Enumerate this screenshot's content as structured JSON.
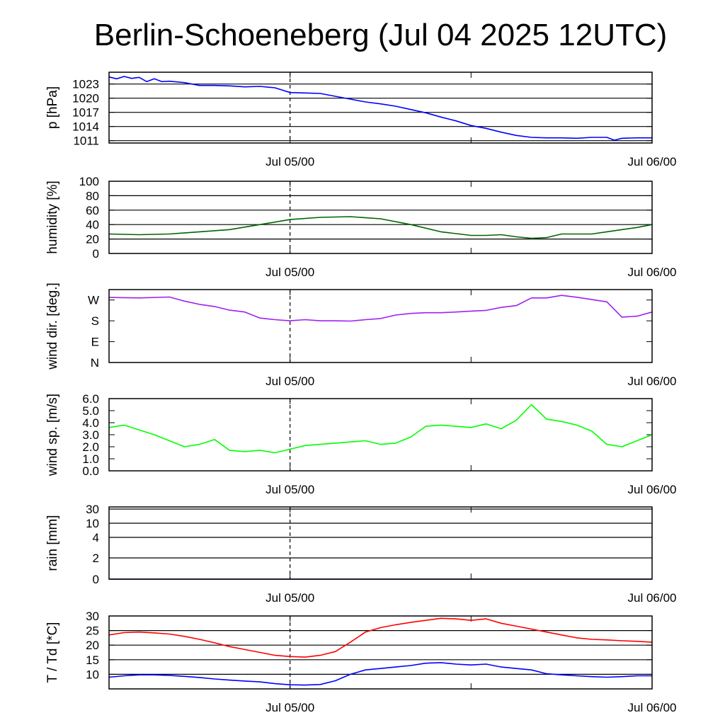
{
  "chart_data": {
    "title": "Berlin-Schoeneberg (Jul 04 2025 12UTC)",
    "x_tick_labels": [
      "Jul 05/00",
      "Jul 06/00"
    ],
    "x_range": [
      "Jul 04 12UTC",
      "Jul 06 00UTC"
    ],
    "marker": "Jul 05/00",
    "panels": [
      {
        "id": "pressure",
        "type": "line",
        "ylabel": "p [hPa]",
        "ylim": [
          1010.5,
          1025.5
        ],
        "y_ticks": [
          1011,
          1014,
          1017,
          1020,
          1023
        ],
        "y_tick_labels": [
          "1011",
          "1014",
          "1017",
          "1020",
          "1023"
        ],
        "grid": "horizontal",
        "series": [
          {
            "color": "#0000ff",
            "x": [
              0,
              0.5,
              1,
              1.5,
              2,
              2.5,
              3,
              3.5,
              4,
              5,
              6,
              7,
              8,
              9,
              10,
              11,
              12,
              13,
              14,
              15,
              16,
              17,
              18,
              19,
              20,
              21,
              22,
              23,
              24,
              25,
              26,
              27,
              28,
              29,
              30,
              31,
              32,
              33,
              33.5,
              34,
              35,
              36
            ],
            "y": [
              1024.5,
              1024.1,
              1024.6,
              1024.2,
              1024.4,
              1023.5,
              1024.1,
              1023.5,
              1023.6,
              1023.3,
              1022.7,
              1022.7,
              1022.6,
              1022.4,
              1022.5,
              1022.2,
              1021.2,
              1021.1,
              1021.0,
              1020.4,
              1019.8,
              1019.2,
              1018.8,
              1018.3,
              1017.6,
              1016.9,
              1016.0,
              1015.2,
              1014.2,
              1013.6,
              1012.8,
              1012.1,
              1011.7,
              1011.6,
              1011.6,
              1011.5,
              1011.7,
              1011.7,
              1011.1,
              1011.5,
              1011.6,
              1011.6
            ]
          }
        ]
      },
      {
        "id": "humidity",
        "type": "line",
        "ylabel": "humidity [%]",
        "ylim": [
          0,
          100
        ],
        "y_ticks": [
          0,
          20,
          40,
          60,
          80,
          100
        ],
        "y_tick_labels": [
          "0",
          "20",
          "40",
          "60",
          "80",
          "100"
        ],
        "grid": "horizontal",
        "series": [
          {
            "color": "#006400",
            "x": [
              0,
              2,
              4,
              6,
              8,
              10,
              12,
              14,
              16,
              18,
              20,
              22,
              24,
              25,
              26,
              27,
              28,
              29,
              30,
              31,
              32,
              33,
              34,
              35,
              36
            ],
            "y": [
              27,
              26,
              27,
              30,
              33,
              40,
              47,
              50,
              51,
              48,
              40,
              30,
              25,
              25,
              26,
              23,
              21,
              22,
              27,
              27,
              27,
              30,
              33,
              36,
              40
            ]
          }
        ]
      },
      {
        "id": "wind_direction",
        "type": "line",
        "ylabel": "wind dir. [deg.]",
        "ylim": [
          0,
          315
        ],
        "y_ticks": [
          0,
          90,
          180,
          270
        ],
        "y_tick_labels": [
          "N",
          "E",
          "S",
          "W"
        ],
        "grid": "none",
        "series": [
          {
            "color": "#a020f0",
            "x": [
              0,
              2,
              4,
              5,
              6,
              7,
              8,
              9,
              10,
              11,
              12,
              13,
              14,
              15,
              16,
              17,
              18,
              19,
              20,
              21,
              22,
              23,
              24,
              25,
              26,
              27,
              28,
              29,
              30,
              31,
              32,
              33,
              34,
              35,
              36
            ],
            "y": [
              281,
              279,
              283,
              265,
              251,
              242,
              226,
              218,
              192,
              185,
              180,
              185,
              180,
              180,
              179,
              185,
              190,
              205,
              212,
              215,
              215,
              218,
              222,
              225,
              238,
              246,
              279,
              279,
              290,
              282,
              272,
              262,
              196,
              200,
              218
            ]
          }
        ]
      },
      {
        "id": "wind_speed",
        "type": "line",
        "ylabel": "wind sp. [m/s]",
        "ylim": [
          0,
          6.0
        ],
        "y_ticks": [
          0,
          1,
          2,
          3,
          4,
          5,
          6
        ],
        "y_tick_labels": [
          "0.0",
          "1.0",
          "2.0",
          "3.0",
          "4.0",
          "5.0",
          "6.0"
        ],
        "grid": "none",
        "series": [
          {
            "color": "#00ff00",
            "x": [
              0,
              1,
              2,
              3,
              4,
              5,
              6,
              7,
              8,
              9,
              10,
              11,
              12,
              13,
              14,
              15,
              16,
              17,
              18,
              19,
              20,
              21,
              22,
              23,
              24,
              25,
              26,
              27,
              28,
              29,
              30,
              31,
              32,
              33,
              34,
              35,
              36
            ],
            "y": [
              3.6,
              3.8,
              3.4,
              3.0,
              2.5,
              2.0,
              2.2,
              2.6,
              1.7,
              1.6,
              1.7,
              1.5,
              1.8,
              2.1,
              2.2,
              2.3,
              2.4,
              2.5,
              2.2,
              2.3,
              2.8,
              3.7,
              3.8,
              3.7,
              3.6,
              3.9,
              3.5,
              4.2,
              5.5,
              4.3,
              4.1,
              3.8,
              3.3,
              2.2,
              2.0,
              2.5,
              3.0
            ]
          }
        ]
      },
      {
        "id": "rain",
        "type": "line",
        "ylabel": "rain [mm]",
        "ylim": [
          0,
          30
        ],
        "y_ticks": [
          0,
          2,
          4,
          10,
          30
        ],
        "y_tick_labels": [
          "0",
          "2",
          "4",
          "10",
          "30"
        ],
        "grid": "horizontal",
        "series": [
          {
            "color": "#000080",
            "x": [
              0,
              36
            ],
            "y": [
              0,
              0
            ]
          }
        ]
      },
      {
        "id": "temperature",
        "type": "line",
        "ylabel": "T / Td [*C]",
        "ylim": [
          5,
          30
        ],
        "y_ticks": [
          10,
          15,
          20,
          25,
          30
        ],
        "y_tick_labels": [
          "10",
          "15",
          "20",
          "25",
          "30"
        ],
        "grid": "horizontal",
        "series": [
          {
            "color": "#ff0000",
            "x": [
              0,
              1,
              2,
              3,
              4,
              5,
              6,
              7,
              8,
              9,
              10,
              11,
              12,
              13,
              14,
              15,
              16,
              17,
              18,
              19,
              20,
              21,
              22,
              23,
              24,
              25,
              26,
              27,
              28,
              29,
              30,
              31,
              32,
              33,
              34,
              35,
              36
            ],
            "y": [
              23.5,
              24.3,
              24.5,
              24.2,
              23.8,
              23.0,
              22.0,
              20.8,
              19.5,
              18.5,
              17.5,
              16.5,
              16.1,
              15.9,
              16.5,
              17.8,
              21.0,
              24.5,
              26.0,
              27.0,
              27.8,
              28.5,
              29.2,
              29.0,
              28.5,
              29.0,
              27.5,
              26.5,
              25.5,
              24.5,
              23.5,
              22.5,
              22.0,
              21.8,
              21.5,
              21.3,
              21.0
            ]
          },
          {
            "color": "#0000ff",
            "x": [
              0,
              1,
              2,
              3,
              4,
              5,
              6,
              7,
              8,
              9,
              10,
              11,
              12,
              13,
              14,
              15,
              16,
              17,
              18,
              19,
              20,
              21,
              22,
              23,
              24,
              25,
              26,
              27,
              28,
              29,
              30,
              31,
              32,
              33,
              34,
              35,
              36
            ],
            "y": [
              9.0,
              9.5,
              9.8,
              9.8,
              9.6,
              9.3,
              8.9,
              8.4,
              8.0,
              7.7,
              7.4,
              6.8,
              6.4,
              6.3,
              6.5,
              7.8,
              10.0,
              11.5,
              12.0,
              12.5,
              13.0,
              13.8,
              14.0,
              13.5,
              13.2,
              13.5,
              12.5,
              12.0,
              11.5,
              10.2,
              9.8,
              9.5,
              9.2,
              9.0,
              9.2,
              9.5,
              9.5
            ]
          }
        ]
      }
    ]
  }
}
